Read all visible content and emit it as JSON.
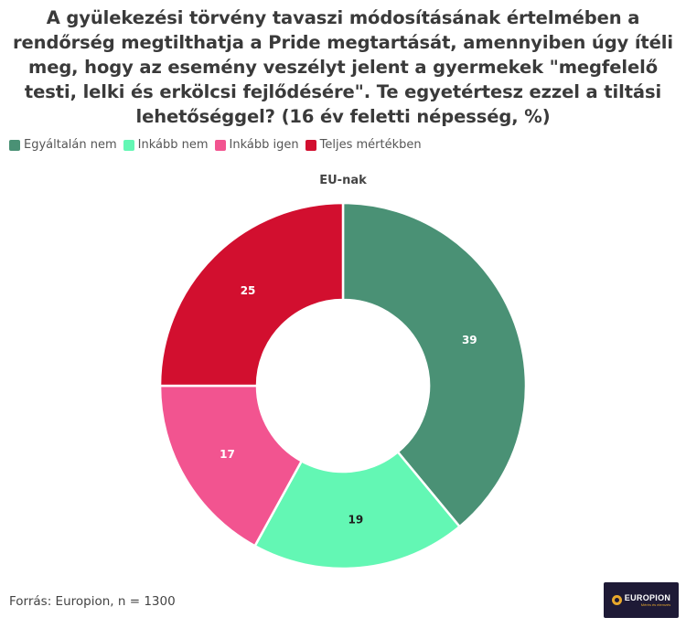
{
  "chart_data": {
    "type": "pie",
    "variant": "donut",
    "title": "A gyülekezési törvény tavaszi módosításának értelmében a rendőrség megtilthatja a Pride megtartását, amennyiben úgy ítéli meg, hogy az esemény veszélyt jelent a gyermekek \"megfelelő testi, lelki és erkölcsi fejlődésére\". Te egyetértesz ezzel a tiltási lehetőséggel? (16 év feletti népesség, %)",
    "subtitle": "EU-nak",
    "legend_position": "top-left",
    "series": [
      {
        "name": "Egyáltalán nem",
        "value": 39,
        "color": "#4a9175"
      },
      {
        "name": "Inkább nem",
        "value": 19,
        "color": "#63f7b4"
      },
      {
        "name": "Inkább igen",
        "value": 17,
        "color": "#f25490"
      },
      {
        "name": "Teljes mértékben",
        "value": 25,
        "color": "#d20f2f"
      }
    ]
  },
  "footer": {
    "source": "Forrás: Europion, n = 1300",
    "logo_name": "EUROPION",
    "logo_tagline": "Mérés és elemzés"
  }
}
